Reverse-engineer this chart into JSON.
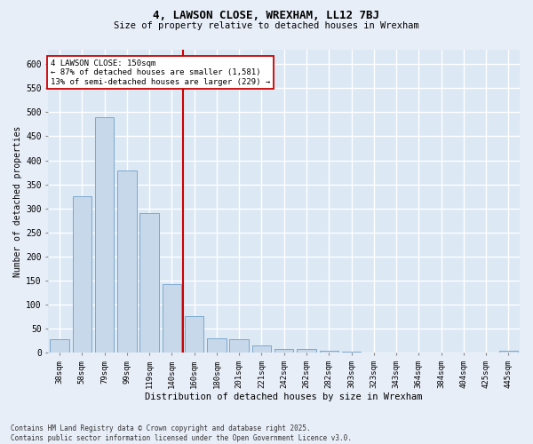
{
  "title1": "4, LAWSON CLOSE, WREXHAM, LL12 7BJ",
  "title2": "Size of property relative to detached houses in Wrexham",
  "xlabel": "Distribution of detached houses by size in Wrexham",
  "ylabel": "Number of detached properties",
  "bar_color": "#c8d8eb",
  "bar_edge_color": "#7aa8cc",
  "plot_bg_color": "#dce8f4",
  "fig_bg_color": "#e8eef8",
  "grid_color": "#ffffff",
  "categories": [
    "38sqm",
    "58sqm",
    "79sqm",
    "99sqm",
    "119sqm",
    "140sqm",
    "160sqm",
    "180sqm",
    "201sqm",
    "221sqm",
    "242sqm",
    "262sqm",
    "282sqm",
    "303sqm",
    "323sqm",
    "343sqm",
    "364sqm",
    "384sqm",
    "404sqm",
    "425sqm",
    "445sqm"
  ],
  "values": [
    28,
    325,
    490,
    378,
    290,
    143,
    75,
    30,
    27,
    15,
    8,
    7,
    3,
    2,
    1,
    1,
    1,
    0,
    0,
    0,
    3
  ],
  "vline_color": "#cc0000",
  "vline_pos": 5.5,
  "annotation_line1": "4 LAWSON CLOSE: 150sqm",
  "annotation_line2": "← 87% of detached houses are smaller (1,581)",
  "annotation_line3": "13% of semi-detached houses are larger (229) →",
  "annotation_box_fc": "#ffffff",
  "annotation_box_ec": "#cc0000",
  "footnote": "Contains HM Land Registry data © Crown copyright and database right 2025.\nContains public sector information licensed under the Open Government Licence v3.0.",
  "ylim": [
    0,
    630
  ],
  "yticks": [
    0,
    50,
    100,
    150,
    200,
    250,
    300,
    350,
    400,
    450,
    500,
    550,
    600
  ]
}
